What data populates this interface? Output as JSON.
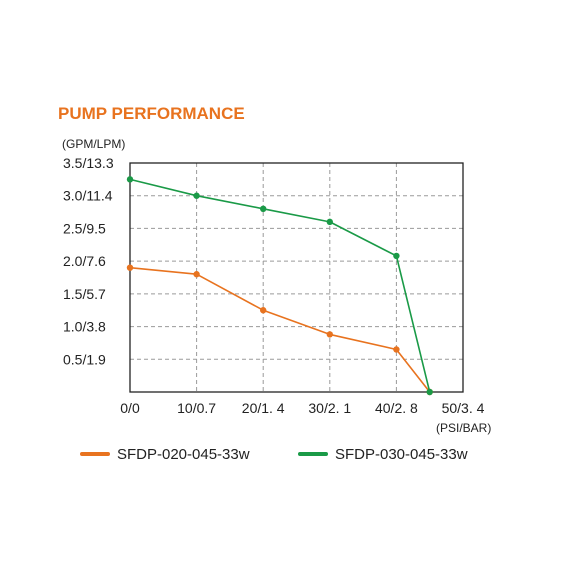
{
  "chart_data": {
    "type": "line",
    "title": "PUMP PERFORMANCE",
    "ylabel": "(GPM/LPM)",
    "xlabel": "(PSI/BAR)",
    "x_ticks": [
      0,
      10,
      20,
      30,
      40,
      50
    ],
    "x_tick_labels": [
      "0/0",
      "10/0.7",
      "20/1. 4",
      "30/2. 1",
      "40/2. 8",
      "50/3. 4"
    ],
    "y_ticks": [
      0.5,
      1.0,
      1.5,
      2.0,
      2.5,
      3.0,
      3.5
    ],
    "y_tick_labels": [
      "0.5/1.9",
      "1.0/3.8",
      "1.5/5.7",
      "2.0/7.6",
      "2.5/9.5",
      "3.0/11.4",
      "3.5/13.3"
    ],
    "xlim": [
      0,
      50
    ],
    "ylim": [
      0,
      3.5
    ],
    "grid": true,
    "legend_position": "bottom",
    "series": [
      {
        "name": "SFDP-020-045-33w",
        "color": "#e8731f",
        "x": [
          0,
          10,
          20,
          30,
          40,
          45
        ],
        "y": [
          1.9,
          1.8,
          1.25,
          0.88,
          0.65,
          0
        ]
      },
      {
        "name": "SFDP-030-045-33w",
        "color": "#1a9a47",
        "x": [
          0,
          10,
          20,
          30,
          40,
          45
        ],
        "y": [
          3.25,
          3.0,
          2.8,
          2.6,
          2.08,
          0
        ]
      }
    ]
  },
  "colors": {
    "title": "#e8731f",
    "grid": "#9a9a9a",
    "frame": "#222222"
  }
}
